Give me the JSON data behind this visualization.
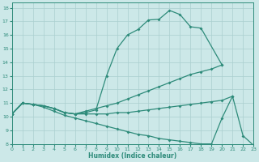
{
  "xlabel": "Humidex (Indice chaleur)",
  "xlim": [
    0,
    23
  ],
  "ylim": [
    8,
    18.4
  ],
  "xticks": [
    0,
    1,
    2,
    3,
    4,
    5,
    6,
    7,
    8,
    9,
    10,
    11,
    12,
    13,
    14,
    15,
    16,
    17,
    18,
    19,
    20,
    21,
    22,
    23
  ],
  "yticks": [
    8,
    9,
    10,
    11,
    12,
    13,
    14,
    15,
    16,
    17,
    18
  ],
  "line_color": "#2e8b7a",
  "bg_color": "#cce8e8",
  "grid_color": "#aacfcf",
  "line1_x": [
    0,
    1,
    2,
    3,
    4,
    5,
    6,
    7,
    8,
    9,
    10,
    11,
    12,
    13,
    14,
    15,
    16,
    17,
    18,
    20
  ],
  "line1_y": [
    10.2,
    11.0,
    10.9,
    10.8,
    10.6,
    10.3,
    10.2,
    10.3,
    10.5,
    13.0,
    15.0,
    16.0,
    16.4,
    17.1,
    17.15,
    17.8,
    17.5,
    16.6,
    16.5,
    13.8
  ],
  "line2_x": [
    0,
    1,
    2,
    3,
    4,
    5,
    6,
    7,
    8,
    9,
    10,
    11,
    12,
    13,
    14,
    15,
    16,
    17,
    18,
    19,
    20
  ],
  "line2_y": [
    10.2,
    11.0,
    10.9,
    10.8,
    10.6,
    10.3,
    10.2,
    10.4,
    10.6,
    10.8,
    11.0,
    11.3,
    11.6,
    11.9,
    12.2,
    12.5,
    12.8,
    13.1,
    13.3,
    13.5,
    13.8
  ],
  "line3_x": [
    0,
    1,
    2,
    3,
    4,
    5,
    6,
    7,
    8,
    9,
    10,
    11,
    12,
    13,
    14,
    15,
    16,
    17,
    18,
    19,
    20,
    21
  ],
  "line3_y": [
    10.2,
    11.0,
    10.9,
    10.8,
    10.6,
    10.3,
    10.2,
    10.2,
    10.2,
    10.2,
    10.3,
    10.3,
    10.4,
    10.5,
    10.6,
    10.7,
    10.8,
    10.9,
    11.0,
    11.1,
    11.2,
    11.5
  ],
  "line4_x": [
    0,
    1,
    2,
    3,
    4,
    5,
    6,
    7,
    8,
    9,
    10,
    11,
    12,
    13,
    14,
    15,
    16,
    17,
    18,
    19,
    20,
    21,
    22,
    23
  ],
  "line4_y": [
    10.2,
    11.0,
    10.9,
    10.7,
    10.4,
    10.1,
    9.9,
    9.7,
    9.5,
    9.3,
    9.1,
    8.9,
    8.7,
    8.6,
    8.4,
    8.3,
    8.2,
    8.1,
    8.0,
    8.0,
    9.9,
    11.5,
    8.6,
    7.9
  ]
}
